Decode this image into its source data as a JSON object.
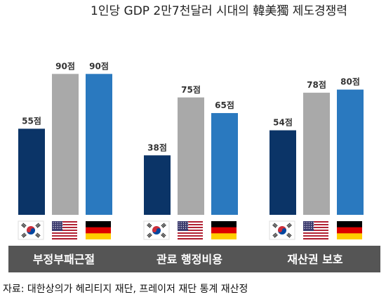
{
  "chart_data": {
    "type": "bar",
    "title": "1인당 GDP 2만7천달러 시대의 韓美獨 제도경쟁력",
    "categories": [
      "부정부패근절",
      "관료 행정비용",
      "재산권 보호"
    ],
    "series": [
      {
        "flag": "south-korea-flag",
        "color": "#0b3467",
        "values": [
          55,
          38,
          54
        ]
      },
      {
        "flag": "united-states-flag",
        "color": "#a9a9a9",
        "values": [
          90,
          75,
          78
        ]
      },
      {
        "flag": "germany-flag",
        "color": "#2a79bf",
        "values": [
          90,
          65,
          80
        ]
      }
    ],
    "value_labels": [
      [
        "55점",
        "38점",
        "54점"
      ],
      [
        "90점",
        "75점",
        "78점"
      ],
      [
        "90점",
        "65점",
        "80점"
      ]
    ],
    "ylim": [
      0,
      100
    ],
    "grid": false,
    "source": "자료: 대한상의가 헤리티지 재단, 프레이저 재단 통계 재산정"
  }
}
